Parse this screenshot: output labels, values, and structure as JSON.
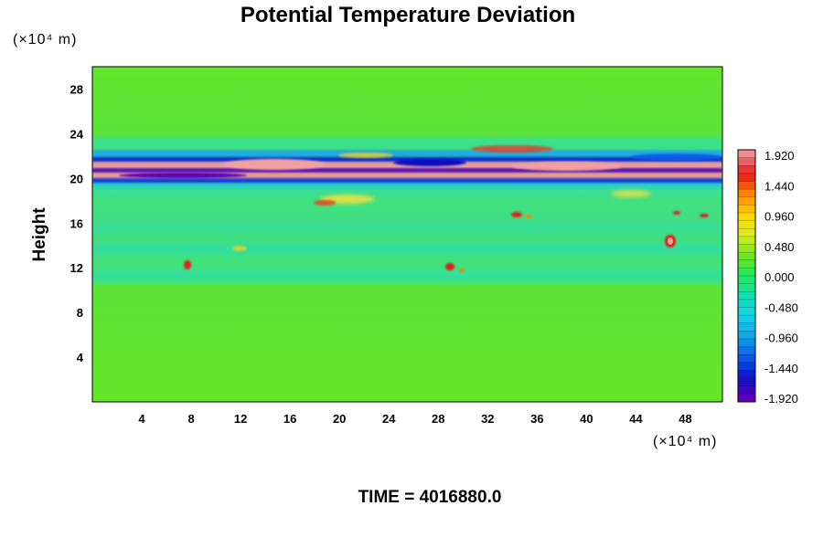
{
  "chart_data": {
    "type": "heatmap",
    "title": "Potential Temperature Deviation",
    "ylabel": "Height",
    "x_unit_label": "(×10⁴ m)",
    "y_unit_label": "(×10⁴ m)",
    "x_range": [
      0,
      51
    ],
    "y_range": [
      0,
      30
    ],
    "x_ticks": [
      "4",
      "8",
      "12",
      "16",
      "20",
      "24",
      "28",
      "32",
      "36",
      "40",
      "44",
      "48"
    ],
    "x_tick_values": [
      4,
      8,
      12,
      16,
      20,
      24,
      28,
      32,
      36,
      40,
      44,
      48
    ],
    "y_ticks": [
      "4",
      "8",
      "12",
      "16",
      "20",
      "24",
      "28"
    ],
    "y_tick_values": [
      4,
      8,
      12,
      16,
      20,
      24,
      28
    ],
    "colorbar": {
      "labels": [
        "1.920",
        "1.440",
        "0.960",
        "0.480",
        "0.000",
        "-0.480",
        "-0.960",
        "-1.440",
        "-1.920"
      ],
      "min": -1.92,
      "max": 1.92,
      "colors": [
        "#f09090",
        "#e61a1a",
        "#ff8800",
        "#ffd400",
        "#d8f020",
        "#6ee61e",
        "#1ee85a",
        "#12e0b0",
        "#16d2e6",
        "#0fa2e6",
        "#0a5aeb",
        "#0a10c8",
        "#5a00b8"
      ]
    },
    "field_notes": "Background near 0 (green) below about 10; noisy cyan/green layer 10–18 with small red/yellow spots; strong alternating band (red/pink vs blue/purple) between about 19 and 23; green above.",
    "time_label": "TIME = 4016880.0"
  }
}
